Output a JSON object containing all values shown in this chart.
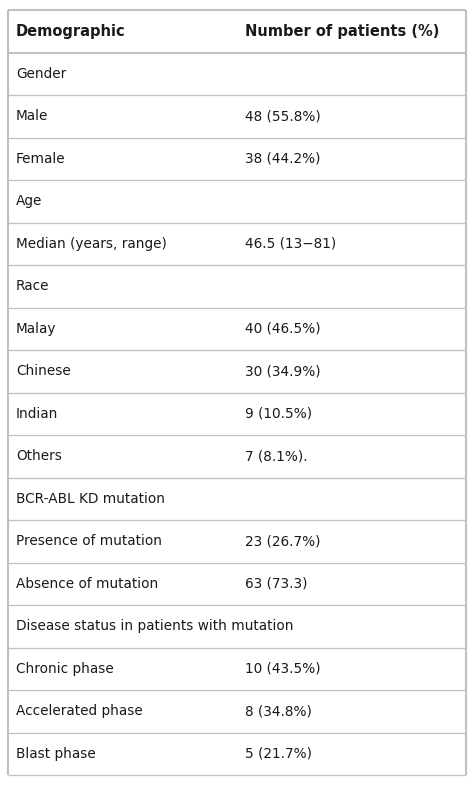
{
  "col1_header": "Demographic",
  "col2_header": "Number of patients (%)",
  "rows": [
    {
      "col1": "Gender",
      "col2": "",
      "is_section": true
    },
    {
      "col1": "Male",
      "col2": "48 (55.8%)",
      "is_section": false
    },
    {
      "col1": "Female",
      "col2": "38 (44.2%)",
      "is_section": false
    },
    {
      "col1": "Age",
      "col2": "",
      "is_section": true
    },
    {
      "col1": "Median (years, range)",
      "col2": "46.5 (13−81)",
      "is_section": false
    },
    {
      "col1": "Race",
      "col2": "",
      "is_section": true
    },
    {
      "col1": "Malay",
      "col2": "40 (46.5%)",
      "is_section": false
    },
    {
      "col1": "Chinese",
      "col2": "30 (34.9%)",
      "is_section": false
    },
    {
      "col1": "Indian",
      "col2": "9 (10.5%)",
      "is_section": false
    },
    {
      "col1": "Others",
      "col2": "7 (8.1%).",
      "is_section": false
    },
    {
      "col1": "BCR-ABL KD mutation",
      "col2": "",
      "is_section": true
    },
    {
      "col1": "Presence of mutation",
      "col2": "23 (26.7%)",
      "is_section": false
    },
    {
      "col1": "Absence of mutation",
      "col2": "63 (73.3)",
      "is_section": false
    },
    {
      "col1": "Disease status in patients with mutation",
      "col2": "",
      "is_section": true
    },
    {
      "col1": "Chronic phase",
      "col2": "10 (43.5%)",
      "is_section": false
    },
    {
      "col1": "Accelerated phase",
      "col2": "8 (34.8%)",
      "is_section": false
    },
    {
      "col1": "Blast phase",
      "col2": "5 (21.7%)",
      "is_section": false
    }
  ],
  "bg_color": "#ffffff",
  "line_color": "#c0c0c0",
  "text_color": "#1a1a1a",
  "header_font_size": 10.5,
  "cell_font_size": 9.8,
  "col_split": 0.5,
  "fig_width": 4.74,
  "fig_height": 7.85,
  "dpi": 100
}
